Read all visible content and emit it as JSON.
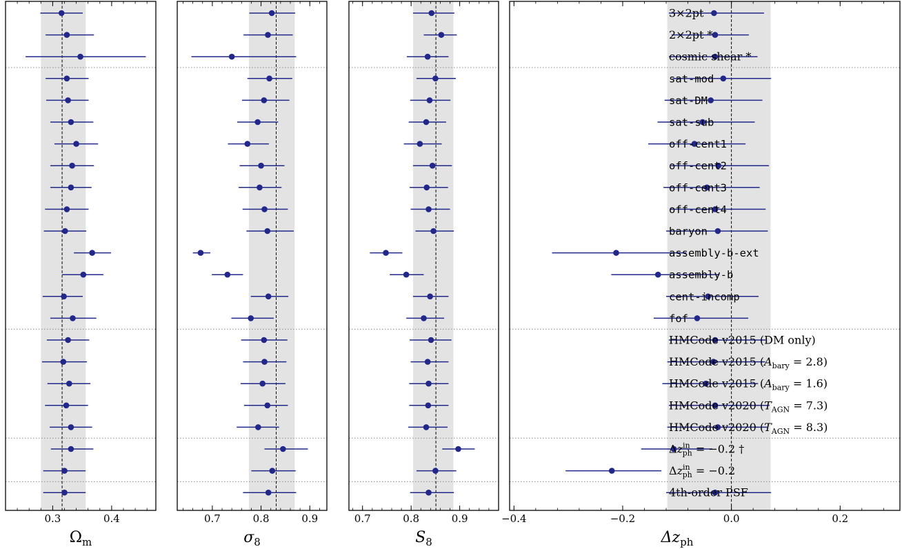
{
  "colors": {
    "marker": "#21288a",
    "band": "#e3e3e3",
    "divider": "#888888",
    "axis": "#000000"
  },
  "chart_data": {
    "type": "scatter",
    "description_style": "forest plot with error bars",
    "row_labels": [
      {
        "text": "3×2pt",
        "mono": false
      },
      {
        "text": "2×2pt *",
        "mono": false
      },
      {
        "text": "cosmic shear *",
        "mono": false
      },
      {
        "text": "sat-mod",
        "mono": true
      },
      {
        "text": "sat-DM",
        "mono": true
      },
      {
        "text": "sat-sub",
        "mono": true
      },
      {
        "text": "off-cent1",
        "mono": true
      },
      {
        "text": "off-cent2",
        "mono": true
      },
      {
        "text": "off-cent3",
        "mono": true
      },
      {
        "text": "off-cent4",
        "mono": true
      },
      {
        "text": "baryon",
        "mono": true
      },
      {
        "text": "assembly-b-ext",
        "mono": true
      },
      {
        "text": "assembly-b",
        "mono": true
      },
      {
        "text": "cent-incomp",
        "mono": true
      },
      {
        "text": "fof",
        "mono": true
      },
      {
        "text": "HMCode v2015 (DM only)",
        "mono": false
      },
      {
        "text": "HMCode v2015 (A_bary = 2.8)",
        "mono": false
      },
      {
        "text": "HMCode v2015 (A_bary = 1.6)",
        "mono": false
      },
      {
        "text": "HMCode v2020 (T_AGN = 7.3)",
        "mono": false
      },
      {
        "text": "HMCode v2020 (T_AGN = 8.3)",
        "mono": false
      },
      {
        "text": "Δz_ph^in = −0.2 †",
        "mono": false
      },
      {
        "text": "Δz_ph^in = −0.2",
        "mono": false
      },
      {
        "text": "4th-order PSF",
        "mono": false
      }
    ],
    "group_dividers_after_row": [
      2,
      14,
      19,
      21
    ],
    "panels": [
      {
        "xlabel": "Ωm",
        "xlim": [
          0.22,
          0.475
        ],
        "ticks": [
          0.3,
          0.4
        ],
        "tick_labels": [
          "0.3",
          "0.4"
        ],
        "band": [
          0.28,
          0.356
        ],
        "ref": 0.316,
        "values": [
          0.315,
          0.324,
          0.347,
          0.324,
          0.326,
          0.331,
          0.34,
          0.333,
          0.331,
          0.324,
          0.321,
          0.367,
          0.352,
          0.319,
          0.334,
          0.326,
          0.318,
          0.328,
          0.323,
          0.331,
          0.331,
          0.32,
          0.32
        ],
        "err_low": [
          0.036,
          0.036,
          0.093,
          0.036,
          0.037,
          0.035,
          0.037,
          0.037,
          0.035,
          0.037,
          0.036,
          0.031,
          0.036,
          0.036,
          0.038,
          0.036,
          0.036,
          0.037,
          0.036,
          0.036,
          0.034,
          0.036,
          0.036
        ],
        "err_high": [
          0.036,
          0.046,
          0.111,
          0.037,
          0.035,
          0.038,
          0.037,
          0.037,
          0.035,
          0.037,
          0.036,
          0.032,
          0.034,
          0.032,
          0.04,
          0.036,
          0.04,
          0.036,
          0.037,
          0.036,
          0.038,
          0.036,
          0.036
        ]
      },
      {
        "xlabel": "σ8",
        "xlim": [
          0.628,
          0.935
        ],
        "ticks": [
          0.7,
          0.8,
          0.9
        ],
        "tick_labels": [
          "0.7",
          "0.8",
          "0.9"
        ],
        "band": [
          0.775,
          0.869
        ],
        "ref": 0.831,
        "values": [
          0.822,
          0.814,
          0.74,
          0.817,
          0.806,
          0.793,
          0.772,
          0.8,
          0.797,
          0.807,
          0.813,
          0.676,
          0.731,
          0.815,
          0.779,
          0.806,
          0.807,
          0.803,
          0.813,
          0.794,
          0.845,
          0.823,
          0.815
        ],
        "err_low": [
          0.046,
          0.05,
          0.083,
          0.045,
          0.045,
          0.042,
          0.04,
          0.044,
          0.043,
          0.045,
          0.043,
          0.016,
          0.032,
          0.036,
          0.04,
          0.047,
          0.044,
          0.045,
          0.048,
          0.044,
          0.038,
          0.043,
          0.052
        ],
        "err_high": [
          0.048,
          0.051,
          0.132,
          0.047,
          0.052,
          0.042,
          0.044,
          0.048,
          0.045,
          0.048,
          0.054,
          0.02,
          0.032,
          0.041,
          0.047,
          0.048,
          0.045,
          0.047,
          0.042,
          0.043,
          0.051,
          0.048,
          0.057
        ]
      },
      {
        "xlabel": "S8",
        "xlim": [
          0.672,
          0.98
        ],
        "ticks": [
          0.7,
          0.8,
          0.9
        ],
        "tick_labels": [
          "0.7",
          "0.8",
          "0.9"
        ],
        "band": [
          0.804,
          0.887
        ],
        "ref": 0.851,
        "values": [
          0.842,
          0.862,
          0.834,
          0.85,
          0.838,
          0.831,
          0.818,
          0.844,
          0.832,
          0.836,
          0.846,
          0.748,
          0.79,
          0.839,
          0.826,
          0.841,
          0.834,
          0.836,
          0.835,
          0.831,
          0.897,
          0.85,
          0.836
        ],
        "err_low": [
          0.038,
          0.036,
          0.043,
          0.039,
          0.04,
          0.036,
          0.033,
          0.04,
          0.035,
          0.037,
          0.037,
          0.033,
          0.034,
          0.035,
          0.036,
          0.044,
          0.035,
          0.04,
          0.039,
          0.037,
          0.033,
          0.039,
          0.038
        ],
        "err_high": [
          0.047,
          0.032,
          0.043,
          0.042,
          0.043,
          0.041,
          0.045,
          0.04,
          0.044,
          0.044,
          0.042,
          0.034,
          0.036,
          0.038,
          0.042,
          0.042,
          0.043,
          0.041,
          0.042,
          0.044,
          0.034,
          0.043,
          0.052
        ]
      },
      {
        "xlabel": "Δzph",
        "xlim": [
          -0.408,
          0.31
        ],
        "ticks": [
          -0.4,
          -0.2,
          0.0,
          0.2
        ],
        "tick_labels": [
          "−0.4",
          "−0.2",
          "0.0",
          "0.2"
        ],
        "band": [
          -0.118,
          0.072
        ],
        "ref": 0.0,
        "values": [
          -0.032,
          -0.03,
          -0.03,
          -0.015,
          -0.038,
          -0.053,
          -0.068,
          -0.024,
          -0.045,
          -0.03,
          -0.025,
          -0.212,
          -0.135,
          -0.043,
          -0.063,
          -0.03,
          -0.033,
          -0.047,
          -0.03,
          -0.025,
          -0.106,
          -0.22,
          -0.03
        ],
        "err_low": [
          0.083,
          0.08,
          0.085,
          0.093,
          0.085,
          0.083,
          0.085,
          0.087,
          0.08,
          0.082,
          0.095,
          0.118,
          0.086,
          0.077,
          0.08,
          0.085,
          0.085,
          0.08,
          0.085,
          0.093,
          0.06,
          0.085,
          0.09
        ],
        "err_high": [
          0.092,
          0.062,
          0.078,
          0.088,
          0.095,
          0.096,
          0.094,
          0.093,
          0.097,
          0.093,
          0.092,
          0.129,
          0.113,
          0.093,
          0.094,
          0.093,
          0.095,
          0.096,
          0.1,
          0.091,
          0.071,
          0.091,
          0.103
        ]
      }
    ]
  }
}
